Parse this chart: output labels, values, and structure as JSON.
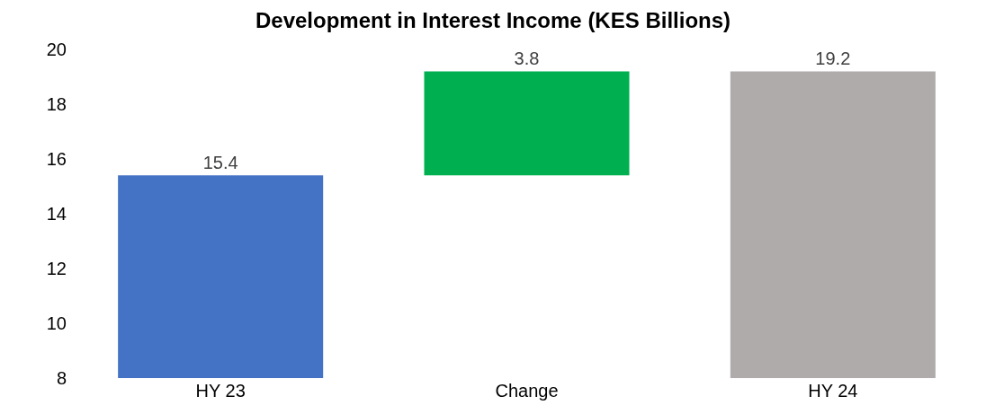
{
  "chart_data": {
    "type": "bar",
    "title": "Development in Interest Income (KES Billions)",
    "categories": [
      "HY 23",
      "Change",
      "HY 24"
    ],
    "values": [
      15.4,
      3.8,
      19.2
    ],
    "base": [
      null,
      15.4,
      null
    ],
    "colors": [
      "#4472c4",
      "#00b050",
      "#afabab"
    ],
    "ylim": [
      8,
      20
    ],
    "yticks": [
      8,
      10,
      12,
      14,
      16,
      18,
      20
    ],
    "data_labels": true
  }
}
